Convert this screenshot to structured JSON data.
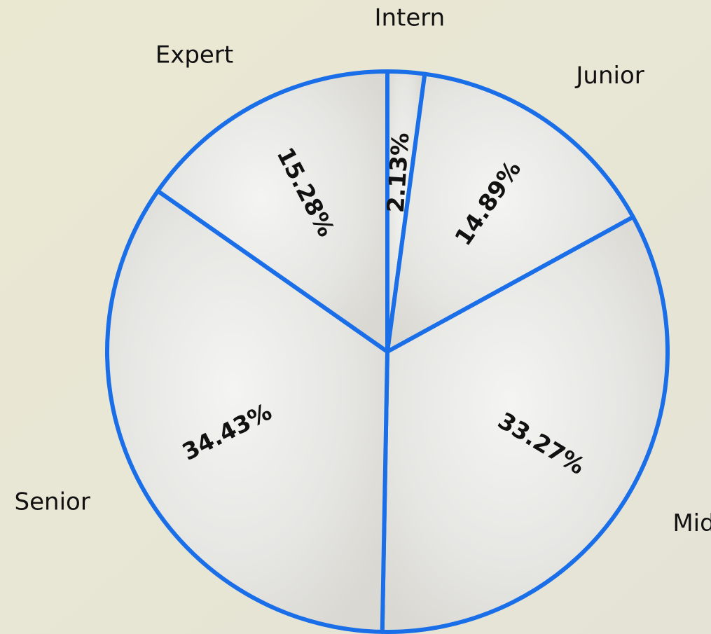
{
  "chart_data": {
    "type": "pie",
    "categories": [
      "Intern",
      "Junior",
      "Mid",
      "Senior",
      "Expert"
    ],
    "values": [
      2.13,
      14.89,
      33.27,
      34.43,
      15.28
    ],
    "value_labels": [
      "2.13%",
      "14.89%",
      "33.27%",
      "34.43%",
      "15.28%"
    ],
    "color": "#1a6fe8"
  }
}
